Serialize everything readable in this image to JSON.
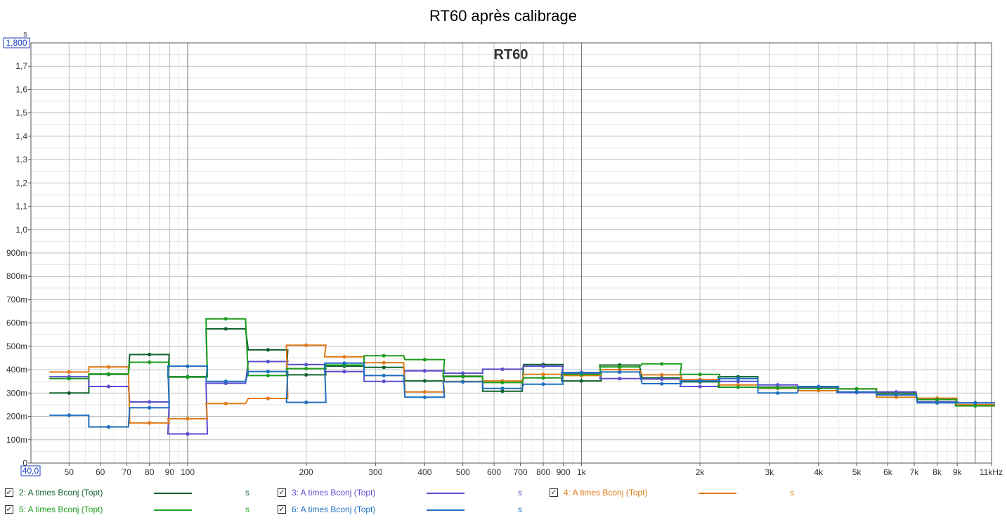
{
  "chart_data": {
    "type": "line",
    "title": "RT60 après calibrage",
    "inner_title": "RT60",
    "y_unit": "s",
    "x_unit_label": "Hz",
    "xscale": "log",
    "xlim": [
      40,
      11000
    ],
    "ylim": [
      0,
      1.8
    ],
    "x_left_box_label": "40,0",
    "y_top_box_label": "1,800",
    "yticks": [
      {
        "v": 0.1,
        "label": "100m"
      },
      {
        "v": 0.2,
        "label": "200m"
      },
      {
        "v": 0.3,
        "label": "300m"
      },
      {
        "v": 0.4,
        "label": "400m"
      },
      {
        "v": 0.5,
        "label": "500m"
      },
      {
        "v": 0.6,
        "label": "600m"
      },
      {
        "v": 0.7,
        "label": "700m"
      },
      {
        "v": 0.8,
        "label": "800m"
      },
      {
        "v": 0.9,
        "label": "900m"
      },
      {
        "v": 1.0,
        "label": "1,0"
      },
      {
        "v": 1.1,
        "label": "1,1"
      },
      {
        "v": 1.2,
        "label": "1,2"
      },
      {
        "v": 1.3,
        "label": "1,3"
      },
      {
        "v": 1.4,
        "label": "1,4"
      },
      {
        "v": 1.5,
        "label": "1,5"
      },
      {
        "v": 1.6,
        "label": "1,6"
      },
      {
        "v": 1.7,
        "label": "1,7"
      },
      {
        "v": 0,
        "label": "0"
      }
    ],
    "xticks": [
      {
        "v": 50,
        "label": "50"
      },
      {
        "v": 60,
        "label": "60"
      },
      {
        "v": 70,
        "label": "70"
      },
      {
        "v": 80,
        "label": "80"
      },
      {
        "v": 90,
        "label": "90"
      },
      {
        "v": 100,
        "label": "100"
      },
      {
        "v": 200,
        "label": "200"
      },
      {
        "v": 300,
        "label": "300"
      },
      {
        "v": 400,
        "label": "400"
      },
      {
        "v": 500,
        "label": "500"
      },
      {
        "v": 600,
        "label": "600"
      },
      {
        "v": 700,
        "label": "700"
      },
      {
        "v": 800,
        "label": "800"
      },
      {
        "v": 900,
        "label": "900"
      },
      {
        "v": 1000,
        "label": "1k"
      },
      {
        "v": 2000,
        "label": "2k"
      },
      {
        "v": 3000,
        "label": "3k"
      },
      {
        "v": 4000,
        "label": "4k"
      },
      {
        "v": 5000,
        "label": "5k"
      },
      {
        "v": 6000,
        "label": "6k"
      },
      {
        "v": 7000,
        "label": "7k"
      },
      {
        "v": 8000,
        "label": "8k"
      },
      {
        "v": 9000,
        "label": "9k"
      },
      {
        "v": 11000,
        "label": "11kHz"
      }
    ],
    "grid": true,
    "legend_position": "bottom",
    "x": [
      50,
      63,
      80,
      100,
      125,
      160,
      200,
      250,
      315,
      400,
      500,
      630,
      800,
      1000,
      1250,
      1600,
      2000,
      2500,
      3150,
      4000,
      5000,
      6300,
      8000,
      10000
    ],
    "series": [
      {
        "name": "2: A times Bconj (Topt)",
        "unit": "s",
        "color": "#10632e",
        "values": [
          0.3,
          0.38,
          0.465,
          0.37,
          0.575,
          0.485,
          0.378,
          0.415,
          0.41,
          0.352,
          0.372,
          0.308,
          0.422,
          0.352,
          0.42,
          0.365,
          0.348,
          0.37,
          0.325,
          0.325,
          0.318,
          0.302,
          0.272,
          0.248
        ]
      },
      {
        "name": "3: A times Bconj (Topt)",
        "unit": "s",
        "color": "#5a4fcf",
        "values": [
          0.37,
          0.328,
          0.262,
          0.125,
          0.342,
          0.435,
          0.422,
          0.392,
          0.35,
          0.395,
          0.385,
          0.402,
          0.415,
          0.385,
          0.362,
          0.36,
          0.328,
          0.35,
          0.335,
          0.322,
          0.302,
          0.305,
          0.262,
          0.258
        ]
      },
      {
        "name": "4: A times Bconj (Topt)",
        "unit": "s",
        "color": "#e07b1a",
        "values": [
          0.39,
          0.412,
          0.172,
          0.19,
          0.255,
          0.277,
          0.505,
          0.455,
          0.43,
          0.305,
          0.35,
          0.352,
          0.38,
          0.375,
          0.4,
          0.378,
          0.358,
          0.335,
          0.32,
          0.31,
          0.318,
          0.282,
          0.278,
          0.25
        ]
      },
      {
        "name": "5: A times Bconj (Topt)",
        "unit": "s",
        "color": "#1e9e1e",
        "values": [
          0.362,
          0.382,
          0.432,
          0.368,
          0.618,
          0.375,
          0.405,
          0.42,
          0.46,
          0.443,
          0.37,
          0.345,
          0.365,
          0.38,
          0.412,
          0.425,
          0.38,
          0.325,
          0.322,
          0.32,
          0.318,
          0.295,
          0.272,
          0.245
        ]
      },
      {
        "name": "6: A times Bconj (Topt)",
        "unit": "s",
        "color": "#1f6fbf",
        "values": [
          0.205,
          0.155,
          0.237,
          0.415,
          0.35,
          0.392,
          0.26,
          0.428,
          0.375,
          0.282,
          0.348,
          0.32,
          0.338,
          0.388,
          0.39,
          0.34,
          0.352,
          0.362,
          0.3,
          0.328,
          0.305,
          0.292,
          0.258,
          0.258
        ]
      }
    ]
  },
  "legend": {
    "rows": [
      [
        {
          "series": 0,
          "checked": "✓"
        },
        {
          "series": 1,
          "checked": "✓"
        },
        {
          "series": 2,
          "checked": "✓"
        }
      ],
      [
        {
          "series": 3,
          "checked": "✓"
        },
        {
          "series": 4,
          "checked": "✓"
        }
      ]
    ]
  }
}
